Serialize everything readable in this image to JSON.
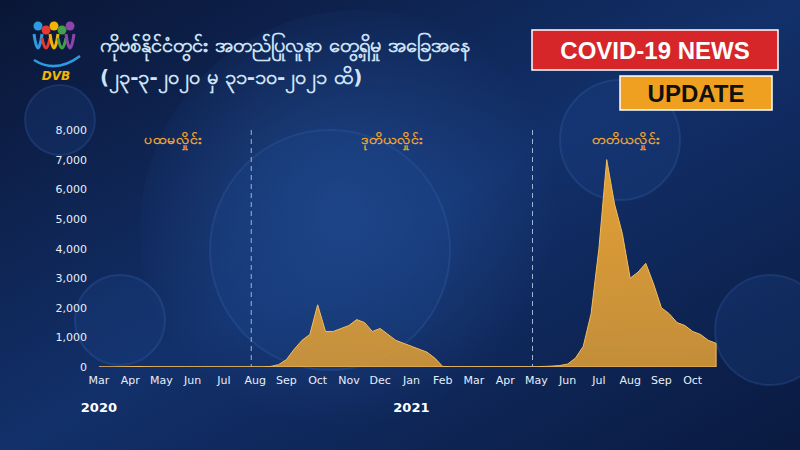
{
  "header": {
    "logo_text": "DVB",
    "title": "ကိုဗစ်နိုင်ငံတွင်း အတည်ပြုလူနာ တွေ့ရှိမှု အခြေအနေ",
    "subtitle": "(၂၃-၃-၂၀၂၀ မှ ၃၁-၁၀-၂၀၂၁ ထိ)",
    "badge": "COVID-19 NEWS",
    "badge2": "UPDATE"
  },
  "chart_data": {
    "type": "area",
    "color": "#e3a035",
    "grid": false,
    "categories": [
      "Mar",
      null,
      null,
      null,
      "Apr",
      null,
      null,
      null,
      "May",
      null,
      null,
      null,
      "Jun",
      null,
      null,
      null,
      "Jul",
      null,
      null,
      null,
      "Aug",
      null,
      null,
      null,
      "Sep",
      null,
      null,
      null,
      "Oct",
      null,
      null,
      null,
      "Nov",
      null,
      null,
      null,
      "Dec",
      null,
      null,
      null,
      "Jan",
      null,
      null,
      null,
      "Feb",
      null,
      null,
      null,
      "Mar",
      null,
      null,
      null,
      "Apr",
      null,
      null,
      null,
      "May",
      null,
      null,
      null,
      "Jun",
      null,
      null,
      null,
      "Jul",
      null,
      null,
      null,
      "Aug",
      null,
      null,
      null,
      "Sep",
      null,
      null,
      null,
      "Oct",
      null,
      null,
      null
    ],
    "values": [
      0,
      0,
      0,
      5,
      10,
      15,
      10,
      5,
      5,
      5,
      5,
      5,
      5,
      5,
      5,
      5,
      5,
      5,
      5,
      5,
      5,
      5,
      20,
      80,
      250,
      600,
      900,
      1100,
      2100,
      1200,
      1200,
      1300,
      1400,
      1600,
      1500,
      1200,
      1300,
      1100,
      900,
      800,
      700,
      600,
      500,
      300,
      20,
      10,
      10,
      10,
      10,
      10,
      10,
      10,
      10,
      10,
      10,
      10,
      10,
      20,
      30,
      50,
      100,
      300,
      700,
      1800,
      4000,
      7000,
      5500,
      4500,
      3000,
      3200,
      3500,
      2800,
      2000,
      1800,
      1500,
      1400,
      1200,
      1100,
      900,
      800
    ],
    "ylim": [
      0,
      8000
    ],
    "yticks": [
      0,
      {
        "value": 1000,
        "label": "1,000"
      },
      {
        "value": 2000,
        "label": "2,000"
      },
      {
        "value": 3000,
        "label": "3,000"
      },
      {
        "value": 4000,
        "label": "4,000"
      },
      {
        "value": 5000,
        "label": "5,000"
      },
      {
        "value": 6000,
        "label": "6,000"
      },
      {
        "value": 7000,
        "label": "7,000"
      },
      {
        "value": 8000,
        "label": "8,000"
      }
    ],
    "phases": [
      {
        "label": "ပထမလှိုင်း",
        "start": 0,
        "end": 19
      },
      {
        "label": "ဒုတိယလှိုင်း",
        "start": 20,
        "end": 55
      },
      {
        "label": "တတိယလှိုင်း",
        "start": 56,
        "end": 79
      }
    ],
    "year_labels": [
      {
        "label": "2020",
        "index": 0
      },
      {
        "label": "2021",
        "index": 40
      }
    ]
  }
}
